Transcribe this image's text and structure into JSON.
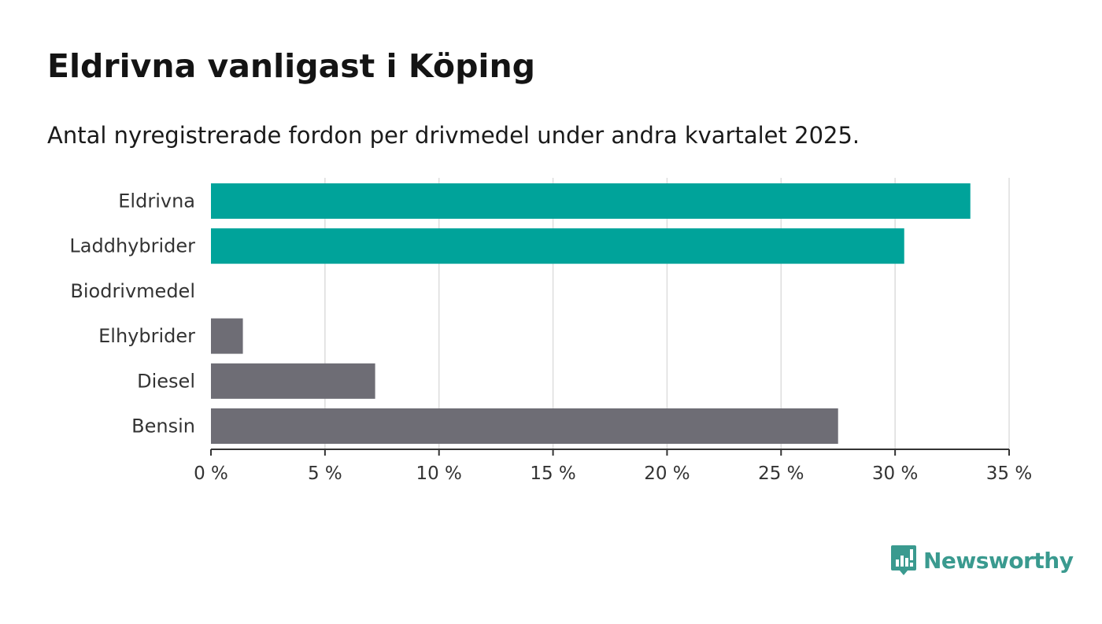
{
  "title": "Eldrivna vanligast i Köping",
  "subtitle": "Antal nyregistrerade fordon per drivmedel under andra kvartalet 2025.",
  "brand": {
    "name": "Newsworthy",
    "color": "#3a9a8f"
  },
  "colors": {
    "highlight": "#00a39a",
    "other": "#6e6d75",
    "grid": "#dddddd",
    "axis": "#333333"
  },
  "chart_data": {
    "type": "bar",
    "orientation": "horizontal",
    "categories": [
      "Eldrivna",
      "Laddhybrider",
      "Biodrivmedel",
      "Elhybrider",
      "Diesel",
      "Bensin"
    ],
    "values": [
      33.3,
      30.4,
      0,
      1.4,
      7.2,
      27.5
    ],
    "highlight": [
      true,
      true,
      false,
      false,
      false,
      false
    ],
    "xlim": [
      0,
      35
    ],
    "ticks": [
      0,
      5,
      10,
      15,
      20,
      25,
      30,
      35
    ],
    "tick_suffix": " %",
    "grid": true
  }
}
